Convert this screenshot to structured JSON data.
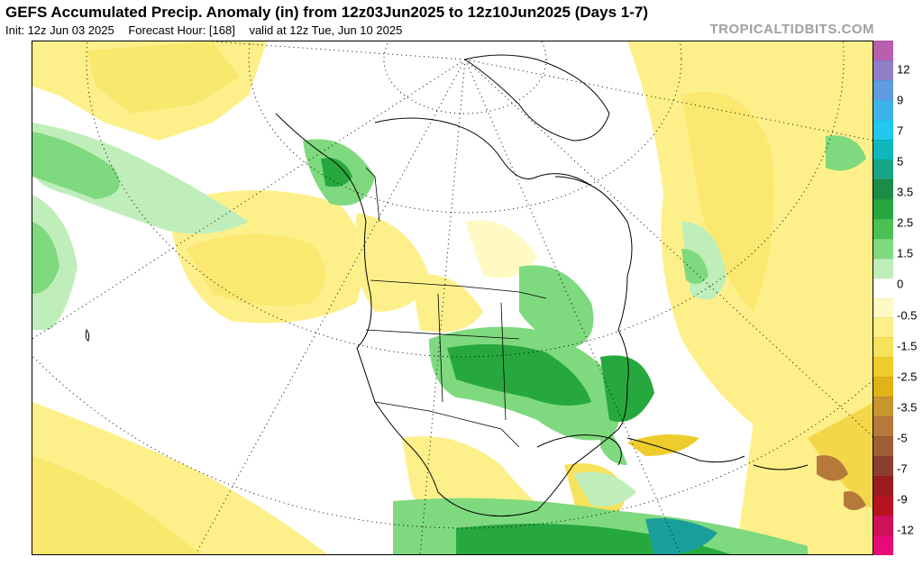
{
  "header": {
    "title": "GEFS Accumulated Precip. Anomaly (in) from 12z03Jun2025 to 12z10Jun2025 (Days 1-7)",
    "init": "Init: 12z Jun 03 2025",
    "forecast_hour": "Forecast Hour: [168]",
    "valid": "valid at 12z Tue, Jun 10 2025",
    "brand": "TROPICALTIDBITS.COM"
  },
  "colorbar": {
    "labels": [
      "12",
      "9",
      "7",
      "5",
      "3.5",
      "2.5",
      "1.5",
      "0",
      "-0.5",
      "-1.5",
      "-2.5",
      "-3.5",
      "-5",
      "-7",
      "-9",
      "-12"
    ],
    "colors": [
      "#b85fb0",
      "#8f7fc9",
      "#5f9be0",
      "#3fb2ec",
      "#21c8f0",
      "#0fb7bd",
      "#17a585",
      "#1c8d47",
      "#27a83e",
      "#4ac253",
      "#7fd97f",
      "#bfeebb",
      "#ffffff",
      "#fff9c4",
      "#fdf08a",
      "#f7e25b",
      "#efcc2d",
      "#e0b319",
      "#c9952f",
      "#b5793c",
      "#9d5e35",
      "#8b3f2f",
      "#9a1c1c",
      "#b5141e",
      "#d1105a",
      "#e80a78"
    ]
  },
  "colors": {
    "wet_light": "#bfeebb",
    "wet_mid": "#7fd97f",
    "wet_dark": "#27a83e",
    "wet_deep": "#1c8d47",
    "teal": "#1a9e9a",
    "dry_light": "#fff9c4",
    "dry_mid": "#fdf08a",
    "dry_dark": "#efcc2d",
    "brown": "#b5793c"
  }
}
